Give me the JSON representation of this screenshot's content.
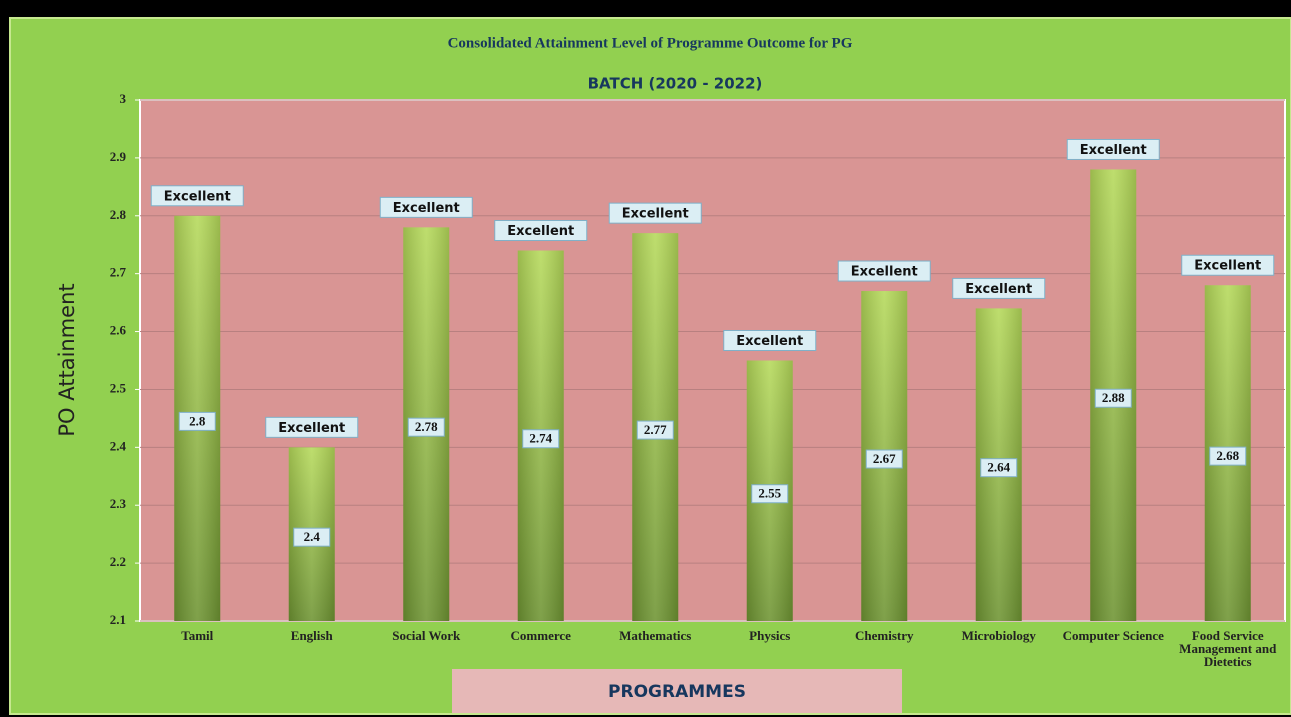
{
  "chart_data": {
    "type": "bar",
    "title": "Consolidated Attainment Level of Programme Outcome for PG",
    "subtitle": "BATCH (2020 - 2022)",
    "y_label": "PO Attainment",
    "x_label": "PROGRAMMES",
    "categories": [
      "Tamil",
      "English",
      "Social Work",
      "Commerce",
      "Mathematics",
      "Physics",
      "Chemistry",
      "Microbiology",
      "Computer Science",
      "Food Service Management and Dietetics"
    ],
    "values": [
      2.8,
      2.4,
      2.78,
      2.74,
      2.77,
      2.55,
      2.67,
      2.64,
      2.88,
      2.68
    ],
    "ratings": [
      "Excellent",
      "Excellent",
      "Excellent",
      "Excellent",
      "Excellent",
      "Excellent",
      "Excellent",
      "Excellent",
      "Excellent",
      "Excellent"
    ],
    "color": "#8db33a",
    "ylim": [
      2.1,
      3
    ],
    "yticks": [
      2.1,
      2.2,
      2.3,
      2.4,
      2.5,
      2.6,
      2.7,
      2.8,
      2.9,
      3
    ],
    "grid": true
  }
}
